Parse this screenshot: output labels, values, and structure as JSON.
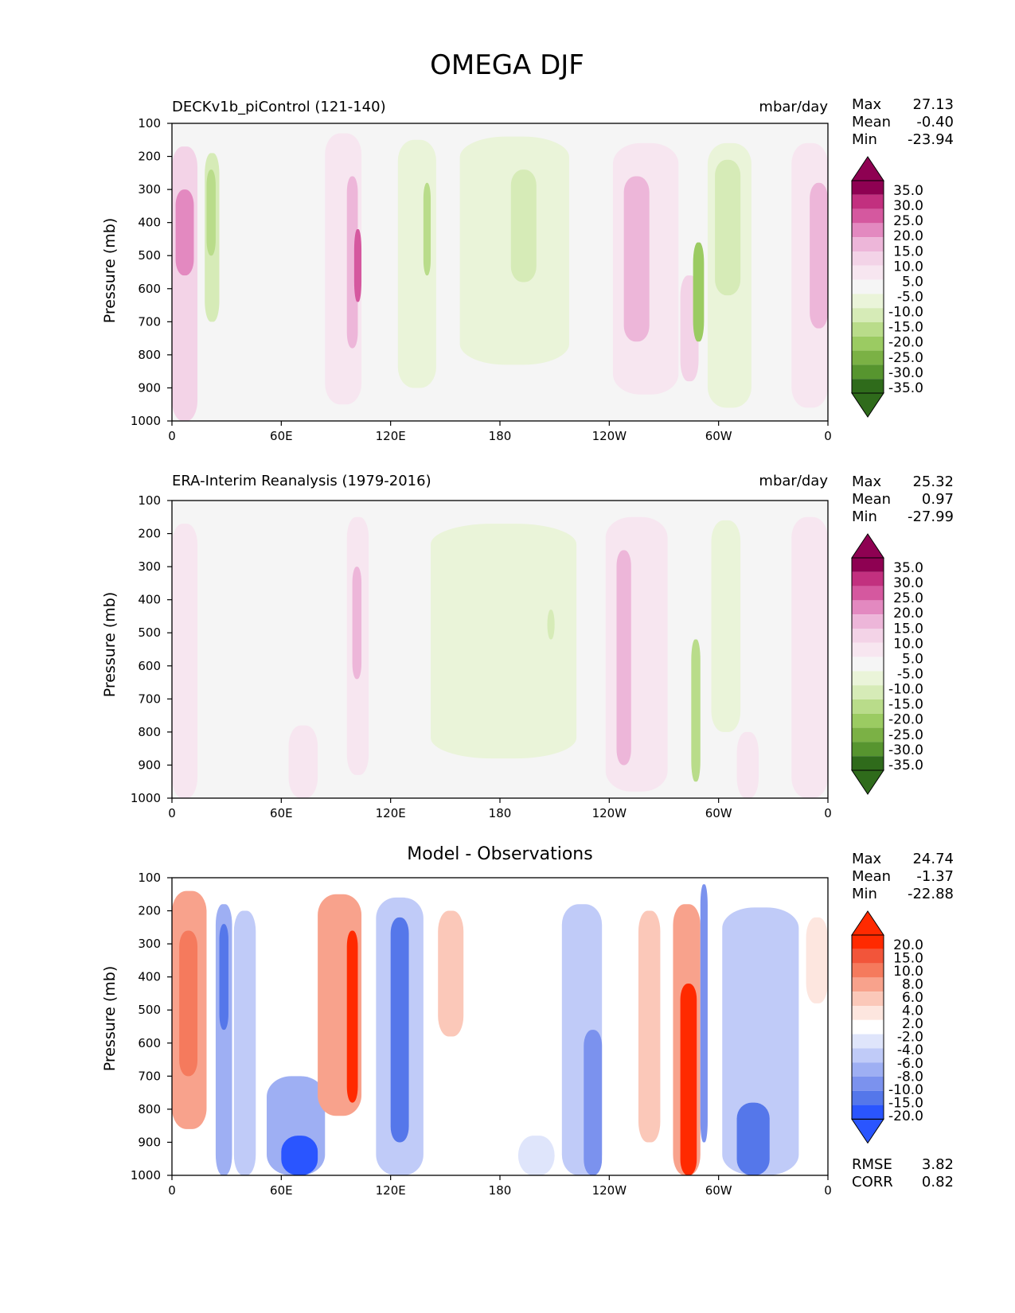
{
  "figure_title": "OMEGA DJF",
  "colors": {
    "background": "#f5f5f5",
    "diff_background": "#ffffff",
    "omega_pos": [
      "#f7e6f0",
      "#f3d3e7",
      "#edb6d9",
      "#e389c0",
      "#d5589f",
      "#c2307f",
      "#8e0152"
    ],
    "omega_neg": [
      "#eaf4d9",
      "#d6ebb7",
      "#b9dc8a",
      "#9bcb62",
      "#7bb145",
      "#57952f",
      "#2f6b1b"
    ],
    "diff_pos": [
      "#fde6df",
      "#fbc8b9",
      "#f8a28c",
      "#f57a5d",
      "#f2553a",
      "#ff2a00"
    ],
    "diff_neg": [
      "#dfe5fb",
      "#c0cbf8",
      "#9eaff3",
      "#7b92ee",
      "#5577ea",
      "#2a55ff"
    ]
  },
  "chart_data": [
    {
      "type": "heatmap",
      "title_left": "DECKv1b_piControl (121-140)",
      "title_right": "mbar/day",
      "ylabel": "Pressure (mb)",
      "xlabel": "",
      "yticks": [
        "100",
        "200",
        "300",
        "400",
        "500",
        "600",
        "700",
        "800",
        "900",
        "1000"
      ],
      "xticks": [
        "0",
        "60E",
        "120E",
        "180",
        "120W",
        "60W",
        "0"
      ],
      "xlim": [
        0,
        360
      ],
      "ylim": [
        100,
        1000
      ],
      "stats": [
        {
          "label": "Max",
          "value": "27.13"
        },
        {
          "label": "Mean",
          "value": "-0.40"
        },
        {
          "label": "Min",
          "value": "-23.94"
        }
      ],
      "colorbar_labels": [
        "35.0",
        "30.0",
        "25.0",
        "20.0",
        "15.0",
        "10.0",
        "5.0",
        "-5.0",
        "-10.0",
        "-15.0",
        "-20.0",
        "-25.0",
        "-30.0",
        "-35.0"
      ],
      "features": [
        {
          "lon": [
            0,
            14
          ],
          "p": [
            170,
            1000
          ],
          "level": 2,
          "core": [
            2,
            12,
            300,
            560,
            4
          ]
        },
        {
          "lon": [
            18,
            26
          ],
          "p": [
            190,
            700
          ],
          "level": -2,
          "core": [
            19,
            24,
            240,
            500,
            -3
          ]
        },
        {
          "lon": [
            84,
            104
          ],
          "p": [
            130,
            950
          ],
          "level": 1,
          "core": [
            96,
            102,
            260,
            780,
            3
          ]
        },
        {
          "lon": [
            100,
            104
          ],
          "p": [
            420,
            640
          ],
          "level": 5
        },
        {
          "lon": [
            124,
            145
          ],
          "p": [
            150,
            900
          ],
          "level": -1,
          "core": [
            138,
            142,
            280,
            560,
            -3
          ]
        },
        {
          "lon": [
            158,
            218
          ],
          "p": [
            140,
            830
          ],
          "level": -1,
          "core": [
            186,
            200,
            240,
            580,
            -2
          ]
        },
        {
          "lon": [
            242,
            278
          ],
          "p": [
            160,
            920
          ],
          "level": 1,
          "core": [
            248,
            262,
            260,
            760,
            3
          ]
        },
        {
          "lon": [
            279,
            289
          ],
          "p": [
            560,
            880
          ],
          "level": 2
        },
        {
          "lon": [
            286,
            292
          ],
          "p": [
            460,
            760
          ],
          "level": -4
        },
        {
          "lon": [
            294,
            318
          ],
          "p": [
            160,
            960
          ],
          "level": -1,
          "core": [
            298,
            312,
            210,
            620,
            -2
          ]
        },
        {
          "lon": [
            340,
            360
          ],
          "p": [
            160,
            960
          ],
          "level": 1,
          "core": [
            350,
            360,
            280,
            720,
            3
          ]
        }
      ]
    },
    {
      "type": "heatmap",
      "title_left": "ERA-Interim Reanalysis (1979-2016)",
      "title_right": "mbar/day",
      "ylabel": "Pressure (mb)",
      "xlabel": "",
      "yticks": [
        "100",
        "200",
        "300",
        "400",
        "500",
        "600",
        "700",
        "800",
        "900",
        "1000"
      ],
      "xticks": [
        "0",
        "60E",
        "120E",
        "180",
        "120W",
        "60W",
        "0"
      ],
      "xlim": [
        0,
        360
      ],
      "ylim": [
        100,
        1000
      ],
      "stats": [
        {
          "label": "Max",
          "value": "25.32"
        },
        {
          "label": "Mean",
          "value": "0.97"
        },
        {
          "label": "Min",
          "value": "-27.99"
        }
      ],
      "colorbar_labels": [
        "35.0",
        "30.0",
        "25.0",
        "20.0",
        "15.0",
        "10.0",
        "5.0",
        "-5.0",
        "-10.0",
        "-15.0",
        "-20.0",
        "-25.0",
        "-30.0",
        "-35.0"
      ],
      "features": [
        {
          "lon": [
            0,
            14
          ],
          "p": [
            170,
            1000
          ],
          "level": 1
        },
        {
          "lon": [
            64,
            80
          ],
          "p": [
            780,
            1000
          ],
          "level": 1
        },
        {
          "lon": [
            96,
            108
          ],
          "p": [
            150,
            930
          ],
          "level": 1,
          "core": [
            99,
            104,
            300,
            640,
            3
          ]
        },
        {
          "lon": [
            142,
            222
          ],
          "p": [
            170,
            880
          ],
          "level": -1,
          "core": [
            206,
            210,
            430,
            520,
            -2
          ]
        },
        {
          "lon": [
            238,
            272
          ],
          "p": [
            150,
            980
          ],
          "level": 1,
          "core": [
            244,
            252,
            250,
            900,
            3
          ]
        },
        {
          "lon": [
            285,
            290
          ],
          "p": [
            520,
            950
          ],
          "level": -3
        },
        {
          "lon": [
            296,
            312
          ],
          "p": [
            160,
            800
          ],
          "level": -1
        },
        {
          "lon": [
            340,
            360
          ],
          "p": [
            150,
            1000
          ],
          "level": 1
        },
        {
          "lon": [
            310,
            322
          ],
          "p": [
            800,
            1000
          ],
          "level": 1
        }
      ]
    },
    {
      "type": "heatmap",
      "title_center": "Model - Observations",
      "ylabel": "Pressure (mb)",
      "xlabel": "",
      "yticks": [
        "100",
        "200",
        "300",
        "400",
        "500",
        "600",
        "700",
        "800",
        "900",
        "1000"
      ],
      "xticks": [
        "0",
        "60E",
        "120E",
        "180",
        "120W",
        "60W",
        "0"
      ],
      "xlim": [
        0,
        360
      ],
      "ylim": [
        100,
        1000
      ],
      "stats": [
        {
          "label": "Max",
          "value": "24.74"
        },
        {
          "label": "Mean",
          "value": "-1.37"
        },
        {
          "label": "Min",
          "value": "-22.88"
        }
      ],
      "extra_stats": [
        {
          "label": "RMSE",
          "value": "3.82"
        },
        {
          "label": "CORR",
          "value": "0.82"
        }
      ],
      "colorbar_labels": [
        "20.0",
        "15.0",
        "10.0",
        "8.0",
        "6.0",
        "4.0",
        "2.0",
        "-2.0",
        "-4.0",
        "-6.0",
        "-8.0",
        "-10.0",
        "-15.0",
        "-20.0"
      ],
      "features": [
        {
          "lon": [
            0,
            19
          ],
          "p": [
            140,
            860
          ],
          "level": 3,
          "core": [
            4,
            14,
            260,
            700,
            4
          ]
        },
        {
          "lon": [
            24,
            33
          ],
          "p": [
            180,
            1000
          ],
          "level": -3,
          "core": [
            26,
            31,
            240,
            560,
            -5
          ]
        },
        {
          "lon": [
            34,
            46
          ],
          "p": [
            200,
            1000
          ],
          "level": -2
        },
        {
          "lon": [
            52,
            84
          ],
          "p": [
            700,
            1000
          ],
          "level": -3,
          "core": [
            60,
            80,
            880,
            1000,
            -6
          ]
        },
        {
          "lon": [
            80,
            104
          ],
          "p": [
            150,
            820
          ],
          "level": 3,
          "core": [
            96,
            102,
            260,
            780,
            6
          ]
        },
        {
          "lon": [
            112,
            138
          ],
          "p": [
            160,
            1000
          ],
          "level": -2,
          "core": [
            120,
            130,
            220,
            900,
            -5
          ]
        },
        {
          "lon": [
            146,
            160
          ],
          "p": [
            200,
            580
          ],
          "level": 2
        },
        {
          "lon": [
            190,
            210
          ],
          "p": [
            880,
            1000
          ],
          "level": -1
        },
        {
          "lon": [
            214,
            236
          ],
          "p": [
            180,
            1000
          ],
          "level": -2,
          "core": [
            226,
            236,
            560,
            1000,
            -4
          ]
        },
        {
          "lon": [
            256,
            268
          ],
          "p": [
            200,
            900
          ],
          "level": 2
        },
        {
          "lon": [
            275,
            290
          ],
          "p": [
            180,
            1000
          ],
          "level": 3,
          "core": [
            279,
            288,
            420,
            1000,
            6
          ]
        },
        {
          "lon": [
            290,
            294
          ],
          "p": [
            120,
            900
          ],
          "level": -4
        },
        {
          "lon": [
            302,
            344
          ],
          "p": [
            190,
            1000
          ],
          "level": -2,
          "core": [
            310,
            328,
            780,
            1000,
            -5
          ]
        },
        {
          "lon": [
            348,
            360
          ],
          "p": [
            220,
            480
          ],
          "level": 1
        }
      ]
    }
  ]
}
